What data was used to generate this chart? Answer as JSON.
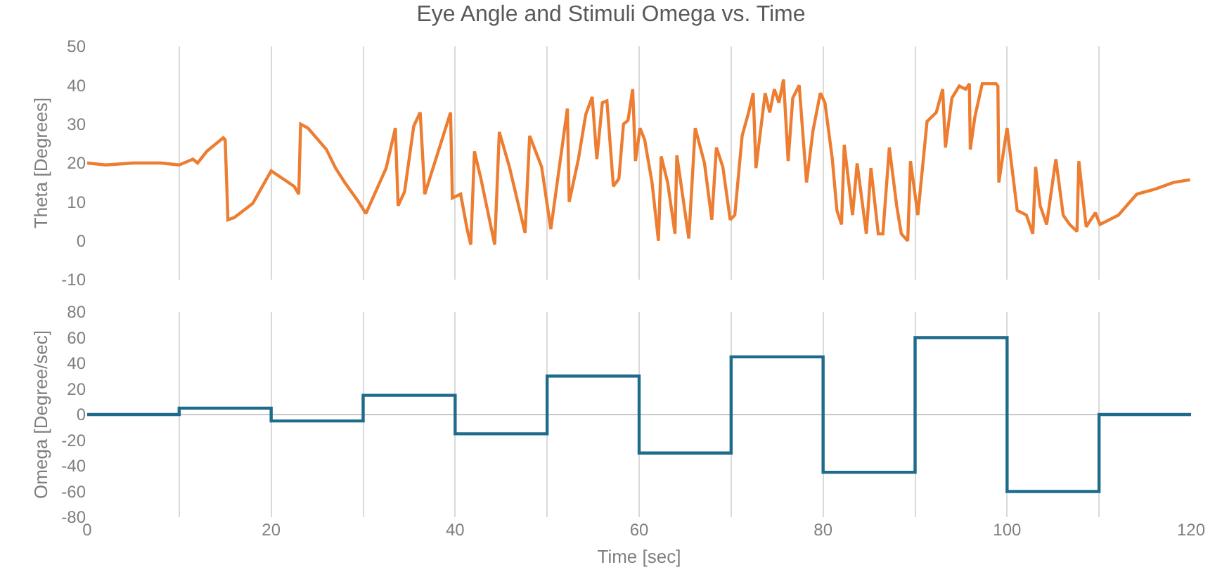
{
  "chart_data": [
    {
      "type": "line",
      "title": "Eye Angle and Stimuli Omega vs. Time",
      "ylabel": "Theta [Degrees]",
      "color": "#ed7d31",
      "marker": "none",
      "line_style": "solid",
      "x": [
        0,
        2,
        5,
        8,
        10,
        11.5,
        12,
        13,
        14.8,
        15,
        15.3,
        16,
        18,
        20,
        22.5,
        23,
        23.2,
        24,
        26,
        27,
        28,
        29.5,
        30.3,
        32.5,
        33.5,
        33.8,
        34.5,
        35.5,
        36.2,
        36.7,
        39.5,
        39.7,
        40.6,
        41.3,
        41.7,
        42.1,
        42.8,
        44.3,
        44.8,
        45.9,
        47.6,
        48.1,
        49.4,
        50.4,
        52.2,
        52.4,
        53.4,
        54.2,
        54.9,
        55.4,
        56,
        56.5,
        57.2,
        57.8,
        58.3,
        58.8,
        59.3,
        59.6,
        60.1,
        60.6,
        61.4,
        62.1,
        62.4,
        63.1,
        63.9,
        64.1,
        65.4,
        66.1,
        67.1,
        67.9,
        68.4,
        69.1,
        69.9,
        70.4,
        71.2,
        71.9,
        72.4,
        72.7,
        73.7,
        74.2,
        74.7,
        75.2,
        75.7,
        76.2,
        76.7,
        77.4,
        78.2,
        78.9,
        79.7,
        80.2,
        81,
        81.5,
        82,
        82.3,
        83.2,
        83.7,
        84.7,
        85.2,
        86,
        86.5,
        87.2,
        88,
        88.5,
        89.2,
        89.5,
        90.3,
        91.3,
        92.3,
        93,
        93.3,
        94,
        94.8,
        95.5,
        95.9,
        96,
        96.5,
        97.3,
        98.8,
        99,
        99.1,
        100,
        101.1,
        102.1,
        102.8,
        103.1,
        103.6,
        104.3,
        105.3,
        106.1,
        106.8,
        107.6,
        107.8,
        108.6,
        109.1,
        109.6,
        110.1,
        112.1,
        114.1,
        116.1,
        118.1,
        119.9
      ],
      "values": [
        20,
        19.5,
        20,
        20,
        19.5,
        21,
        20,
        23,
        26.5,
        26,
        5.4,
        6,
        9.6,
        18,
        14,
        12,
        30,
        29,
        23.5,
        18.7,
        15,
        10,
        7,
        18.7,
        29,
        9,
        12.6,
        29.5,
        33,
        12,
        33,
        11,
        12,
        3,
        -1,
        23,
        16,
        -1,
        28,
        19,
        2,
        27,
        19,
        3,
        34,
        10,
        21,
        32.5,
        37,
        21,
        35.5,
        36,
        14,
        16,
        30,
        31,
        39,
        20.5,
        29,
        26,
        15,
        0,
        21.7,
        15,
        1.8,
        22,
        0.6,
        29,
        20,
        5.4,
        24,
        19,
        5.4,
        6.6,
        27,
        33,
        38,
        18.7,
        38,
        33,
        39,
        35.5,
        41.5,
        20.5,
        36.7,
        40,
        15,
        28.3,
        38,
        35.5,
        21,
        7.8,
        4.2,
        24.7,
        6.6,
        19.9,
        1.8,
        18.7,
        1.8,
        1.8,
        24,
        9,
        1.8,
        0,
        20.5,
        6.6,
        30.7,
        33,
        39,
        24,
        36.7,
        39.8,
        39,
        40.4,
        23.5,
        31.9,
        40.4,
        40.4,
        39.8,
        15,
        29,
        7.8,
        6.6,
        1.8,
        19,
        9,
        4.2,
        21,
        6.6,
        4.2,
        2.4,
        20.5,
        3.6,
        5.4,
        7.2,
        4.2,
        6.6,
        12,
        13.3,
        15,
        15.7
      ],
      "xlim": [
        0,
        120
      ],
      "ylim": [
        -10,
        50
      ],
      "xticks": [
        0,
        {
          "value": 10,
          "label": null
        },
        20,
        {
          "value": 30,
          "label": null
        },
        40,
        {
          "value": 50,
          "label": null
        },
        60,
        {
          "value": 70,
          "label": null
        },
        80,
        {
          "value": 90,
          "label": null
        },
        100,
        {
          "value": 110,
          "label": null
        },
        120
      ],
      "yticks": [
        -10,
        0,
        10,
        20,
        30,
        40,
        50
      ],
      "grid": "x",
      "tick_labels": "y"
    },
    {
      "type": "step",
      "ylabel": "Omega [Degree/sec]",
      "xlabel": "Time [sec]",
      "color": "#1f6b8c",
      "marker": "none",
      "line_style": "solid",
      "x": [
        0,
        10,
        20,
        30,
        40,
        50,
        60,
        70,
        80,
        90,
        100,
        110,
        120
      ],
      "values": [
        0,
        5,
        -5,
        15,
        -15,
        30,
        -30,
        45,
        -45,
        60,
        -60,
        0,
        0
      ],
      "xlim": [
        0,
        120
      ],
      "ylim": [
        -80,
        80
      ],
      "xticks": [
        0,
        {
          "value": 10,
          "label": null
        },
        20,
        {
          "value": 30,
          "label": null
        },
        40,
        {
          "value": 50,
          "label": null
        },
        60,
        {
          "value": 70,
          "label": null
        },
        80,
        {
          "value": 90,
          "label": null
        },
        100,
        {
          "value": 110,
          "label": null
        },
        120
      ],
      "yticks": [
        -80,
        -60,
        -40,
        -20,
        0,
        20,
        40,
        60,
        80
      ],
      "grid": "x",
      "ref_lines": [
        {
          "axis": "y",
          "value": 0,
          "color": "#c8c8c8"
        }
      ]
    }
  ]
}
